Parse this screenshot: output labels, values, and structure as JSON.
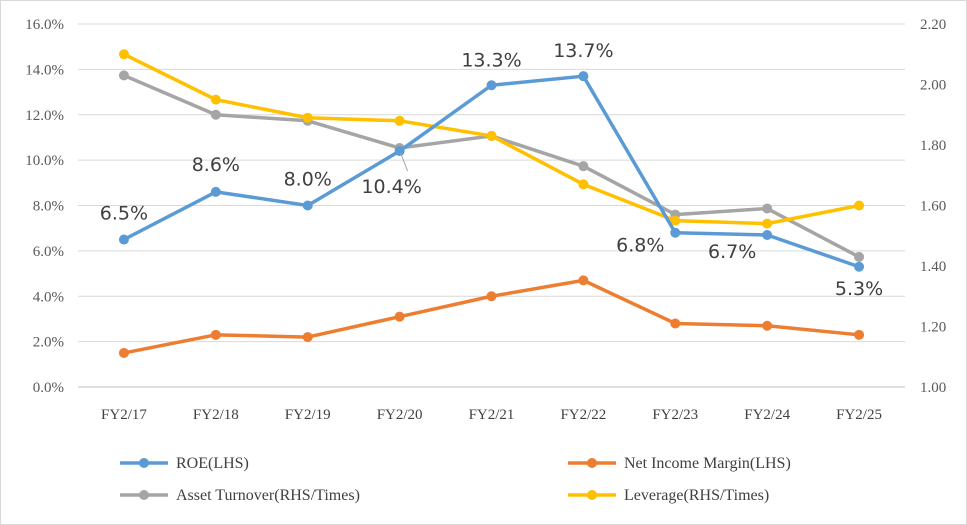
{
  "chart_data": {
    "type": "line",
    "categories": [
      "FY2/17",
      "FY2/18",
      "FY2/19",
      "FY2/20",
      "FY2/21",
      "FY2/22",
      "FY2/23",
      "FY2/24",
      "FY2/25"
    ],
    "y_left": {
      "min": 0,
      "max": 16,
      "step": 2,
      "tick_labels": [
        "0.0%",
        "2.0%",
        "4.0%",
        "6.0%",
        "8.0%",
        "10.0%",
        "12.0%",
        "14.0%",
        "16.0%"
      ]
    },
    "y_right": {
      "min": 1.0,
      "max": 2.2,
      "step": 0.2,
      "tick_labels": [
        "1.00",
        "1.20",
        "1.40",
        "1.60",
        "1.80",
        "2.00",
        "2.20"
      ]
    },
    "grid": true,
    "legend_position": "bottom",
    "series": [
      {
        "name": "ROE(LHS)",
        "axis": "left",
        "color": "#5B9BD5",
        "values": [
          6.5,
          8.6,
          8.0,
          10.4,
          13.3,
          13.7,
          6.8,
          6.7,
          5.3
        ],
        "data_labels": [
          "6.5%",
          "8.6%",
          "8.0%",
          "10.4%",
          "13.3%",
          "13.7%",
          "6.8%",
          "6.7%",
          "5.3%"
        ]
      },
      {
        "name": "Net Income Margin(LHS)",
        "axis": "left",
        "color": "#ED7D31",
        "values": [
          1.5,
          2.3,
          2.2,
          3.1,
          4.0,
          4.7,
          2.8,
          2.7,
          2.3
        ]
      },
      {
        "name": "Asset Turnover(RHS/Times)",
        "axis": "right",
        "color": "#A5A5A5",
        "values": [
          2.03,
          1.9,
          1.88,
          1.79,
          1.83,
          1.73,
          1.57,
          1.59,
          1.43
        ]
      },
      {
        "name": "Leverage(RHS/Times)",
        "axis": "right",
        "color": "#FFC000",
        "values": [
          2.1,
          1.95,
          1.89,
          1.88,
          1.83,
          1.67,
          1.55,
          1.54,
          1.6
        ]
      }
    ]
  }
}
